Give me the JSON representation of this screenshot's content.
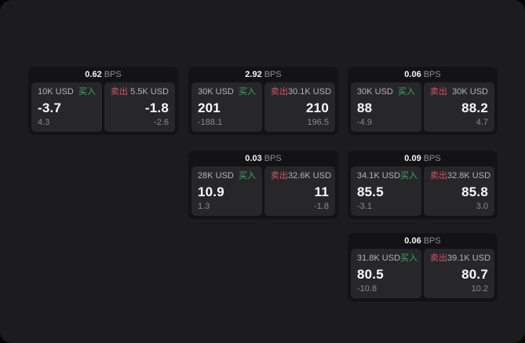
{
  "window": {
    "background": "#050505",
    "panel_background": "#1c1c1e"
  },
  "labels": {
    "bps_unit": "BPS",
    "buy": "买入",
    "sell": "卖出"
  },
  "colors": {
    "buy_green": "#43a566",
    "sell_red": "#c9566a",
    "card_background": "#131315",
    "tile_background": "#27272a"
  },
  "cards": [
    {
      "bps": "0.62",
      "buy": {
        "amount": "10K USD",
        "value": "-3.7",
        "delta": "4.3"
      },
      "sell": {
        "amount": "5.5K USD",
        "value": "-1.8",
        "delta": "-2.6"
      }
    },
    {
      "bps": "2.92",
      "buy": {
        "amount": "30K USD",
        "value": "201",
        "delta": "-188.1"
      },
      "sell": {
        "amount": "30.1K USD",
        "value": "210",
        "delta": "196.5"
      }
    },
    {
      "bps": "0.06",
      "buy": {
        "amount": "30K USD",
        "value": "88",
        "delta": "-4.9"
      },
      "sell": {
        "amount": "30K USD",
        "value": "88.2",
        "delta": "4.7"
      }
    },
    {
      "bps": "0.03",
      "buy": {
        "amount": "28K USD",
        "value": "10.9",
        "delta": "1.3"
      },
      "sell": {
        "amount": "32.6K USD",
        "value": "11",
        "delta": "-1.8"
      }
    },
    {
      "bps": "0.09",
      "buy": {
        "amount": "34.1K USD",
        "value": "85.5",
        "delta": "-3.1"
      },
      "sell": {
        "amount": "32.8K USD",
        "value": "85.8",
        "delta": "3.0"
      }
    },
    {
      "bps": "0.06",
      "buy": {
        "amount": "31.8K USD",
        "value": "80.5",
        "delta": "-10.8"
      },
      "sell": {
        "amount": "39.1K USD",
        "value": "80.7",
        "delta": "10.2"
      }
    }
  ]
}
